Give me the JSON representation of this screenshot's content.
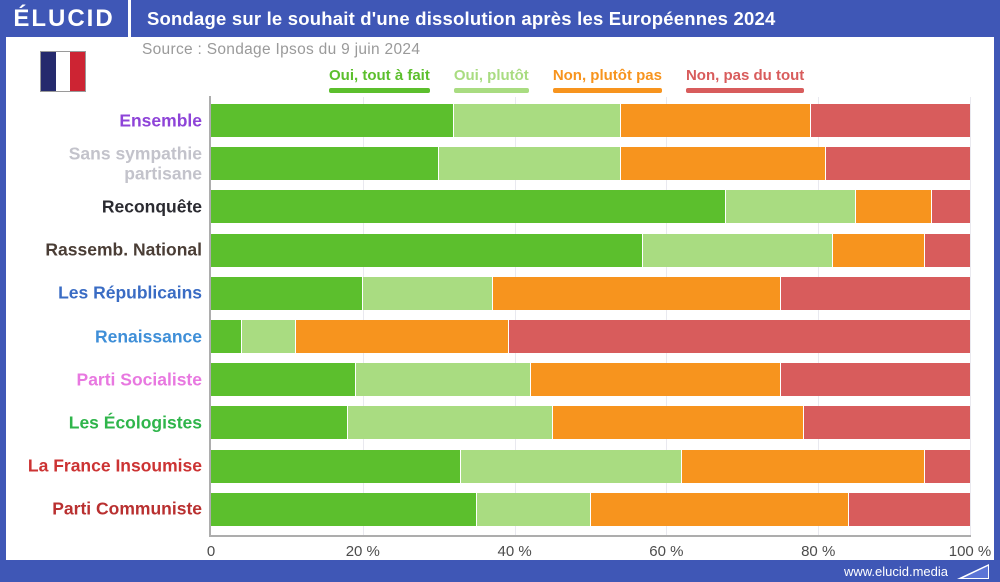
{
  "header": {
    "logo": "ÉLUCID",
    "title": "Sondage sur le souhait d'une dissolution après les Européennes 2024"
  },
  "source": "Source : Sondage Ipsos du 9 juin 2024",
  "flag": {
    "name": "france-flag",
    "colors": [
      "#252A6D",
      "#FFFFFF",
      "#CD2433"
    ]
  },
  "colors": {
    "brand_blue": "#3F57B6",
    "axis_gray": "#ADADAD",
    "gridline": "#E9E9EF",
    "tick_text": "#4C4C4C",
    "source_text": "#9A9A9A"
  },
  "legend": [
    {
      "label": "Oui, tout à fait",
      "color": "#5CBF2D"
    },
    {
      "label": "Oui, plutôt",
      "color": "#A9DC81"
    },
    {
      "label": "Non, plutôt pas",
      "color": "#F7941E"
    },
    {
      "label": "Non, pas du tout",
      "color": "#D85C5C"
    }
  ],
  "chart_data": {
    "type": "bar",
    "orientation": "horizontal",
    "stacked": true,
    "xlim": [
      0,
      100
    ],
    "series_names": [
      "Oui, tout à fait",
      "Oui, plutôt",
      "Non, plutôt pas",
      "Non, pas du tout"
    ],
    "series_colors": [
      "#5CBF2D",
      "#A9DC81",
      "#F7941E",
      "#D85C5C"
    ],
    "x_ticks": [
      {
        "label": "0",
        "pct": 0
      },
      {
        "label": "20 %",
        "pct": 20
      },
      {
        "label": "40 %",
        "pct": 40
      },
      {
        "label": "60 %",
        "pct": 60
      },
      {
        "label": "80 %",
        "pct": 80
      },
      {
        "label": "100 %",
        "pct": 100
      }
    ],
    "rows": [
      {
        "label": "Ensemble",
        "label_color": "#8E44D8",
        "values": [
          32,
          22,
          25,
          21
        ]
      },
      {
        "label": "Sans sympathie partisane",
        "label_color": "#C3C3CB",
        "values": [
          30,
          24,
          27,
          19
        ]
      },
      {
        "label": "Reconquête",
        "label_color": "#2B2B31",
        "values": [
          68,
          17,
          10,
          5
        ]
      },
      {
        "label": "Rassemb. National",
        "label_color": "#4A3D35",
        "values": [
          57,
          25,
          12,
          6
        ]
      },
      {
        "label": "Les Républicains",
        "label_color": "#3A6CC4",
        "values": [
          20,
          17,
          38,
          25
        ]
      },
      {
        "label": "Renaissance",
        "label_color": "#3F8FD8",
        "values": [
          4,
          7,
          28,
          61
        ]
      },
      {
        "label": "Parti Socialiste",
        "label_color": "#E878E0",
        "values": [
          19,
          23,
          33,
          25
        ]
      },
      {
        "label": "Les Écologistes",
        "label_color": "#2FB54B",
        "values": [
          18,
          27,
          33,
          22
        ]
      },
      {
        "label": "La France Insoumise",
        "label_color": "#CC3333",
        "values": [
          33,
          29,
          32,
          6
        ]
      },
      {
        "label": "Parti Communiste",
        "label_color": "#B93030",
        "values": [
          35,
          15,
          34,
          16
        ]
      }
    ]
  },
  "footer": {
    "url": "www.elucid.media"
  }
}
